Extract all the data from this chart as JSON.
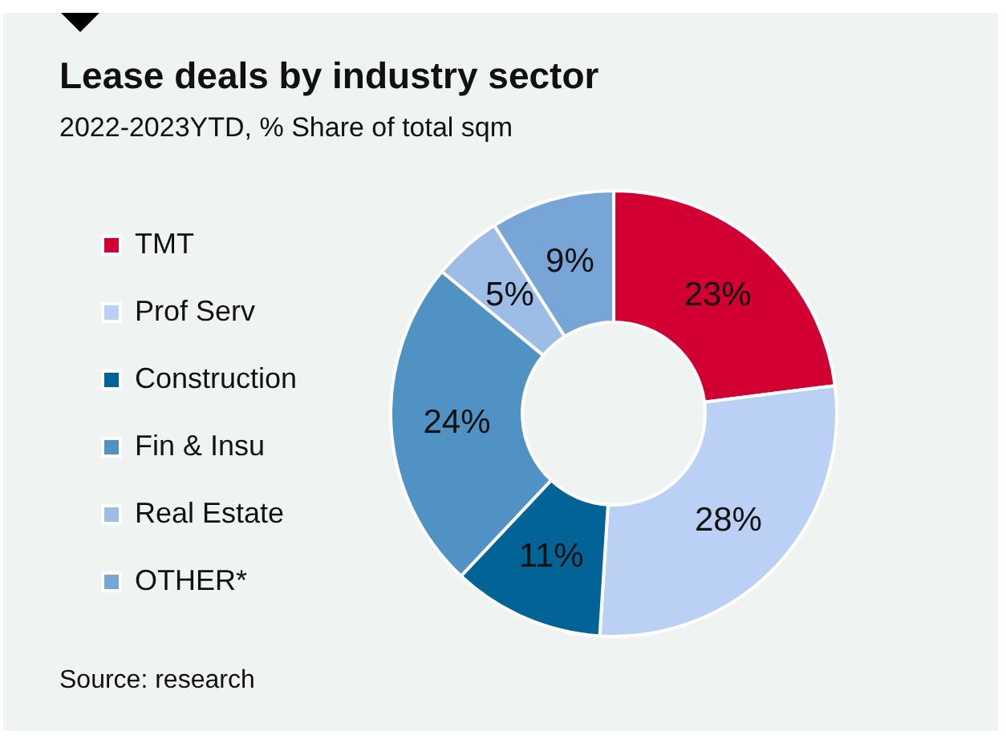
{
  "chart_data": {
    "type": "donut",
    "title": "Lease deals by industry sector",
    "subtitle": "2022-2023YTD, % Share of total sqm",
    "categories": [
      "TMT",
      "Prof Serv",
      "Construction",
      "Fin & Insu",
      "Real Estate",
      "OTHER*"
    ],
    "values": [
      23,
      28,
      11,
      24,
      5,
      9
    ],
    "value_labels": [
      "23%",
      "28%",
      "11%",
      "24%",
      "5%",
      "9%"
    ],
    "colors": [
      "#d20032",
      "#bad0f4",
      "#016396",
      "#5092c4",
      "#9dbce6",
      "#77a6d6"
    ],
    "legend": "left",
    "annotations": [
      "Source: research"
    ]
  }
}
